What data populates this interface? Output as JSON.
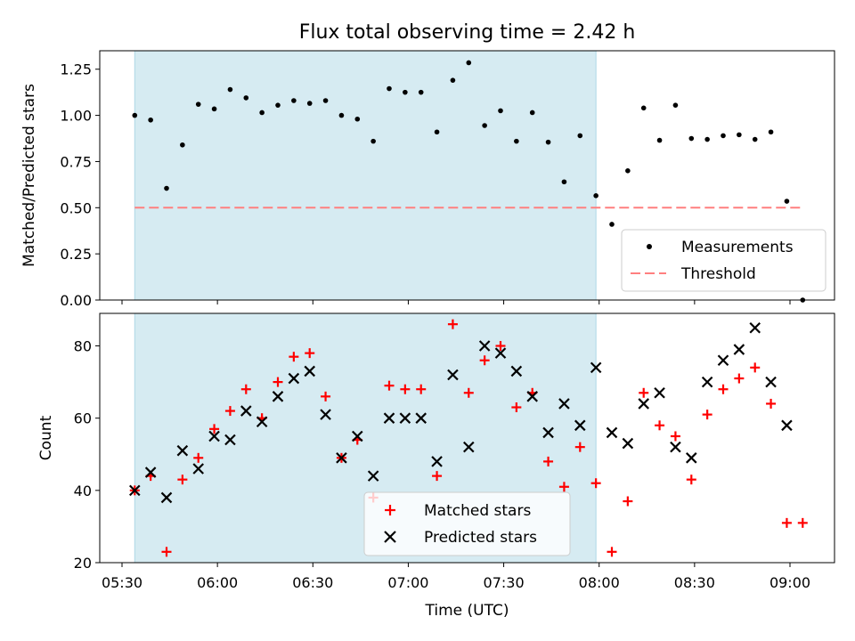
{
  "chart_data": [
    {
      "type": "scatter",
      "title": "Flux total observing time = 2.42 h",
      "xlabel": "",
      "ylabel": "Matched/Predicted stars",
      "ylim": [
        0,
        1.35
      ],
      "yticks": [
        0.0,
        0.25,
        0.5,
        0.75,
        1.0,
        1.25
      ],
      "ytick_labels": [
        "0.00",
        "0.25",
        "0.50",
        "0.75",
        "1.00",
        "1.25"
      ],
      "xlim": [
        "05:23",
        "09:14"
      ],
      "shaded_region": {
        "x": [
          "05:34",
          "07:59"
        ],
        "color": "#add8e6"
      },
      "legend": {
        "position": "lower right",
        "entries": [
          "Measurements",
          "Threshold"
        ]
      },
      "threshold": {
        "name": "Threshold",
        "y": 0.5,
        "x": [
          "05:34",
          "09:04"
        ],
        "color": "#ff7f7f",
        "style": "dashed"
      },
      "series": [
        {
          "name": "Measurements",
          "marker": "dot",
          "color": "#000000",
          "x": [
            "05:34",
            "05:39",
            "05:44",
            "05:49",
            "05:54",
            "05:59",
            "06:04",
            "06:09",
            "06:14",
            "06:19",
            "06:24",
            "06:29",
            "06:34",
            "06:39",
            "06:44",
            "06:49",
            "06:54",
            "06:59",
            "07:04",
            "07:09",
            "07:14",
            "07:19",
            "07:24",
            "07:29",
            "07:34",
            "07:39",
            "07:44",
            "07:49",
            "07:54",
            "07:59",
            "08:04",
            "08:09",
            "08:14",
            "08:19",
            "08:24",
            "08:29",
            "08:34",
            "08:39",
            "08:44",
            "08:49",
            "08:54",
            "08:59",
            "09:04"
          ],
          "y": [
            1.0,
            0.975,
            0.605,
            0.84,
            1.06,
            1.035,
            1.14,
            1.095,
            1.015,
            1.055,
            1.08,
            1.065,
            1.08,
            1.0,
            0.98,
            0.86,
            1.145,
            1.125,
            1.125,
            0.91,
            1.19,
            1.285,
            0.945,
            1.025,
            0.86,
            1.015,
            0.855,
            0.64,
            0.89,
            0.565,
            0.41,
            0.7,
            1.04,
            0.865,
            1.055,
            0.875,
            0.87,
            0.89,
            0.895,
            0.87,
            0.91,
            0.535,
            0.0
          ]
        }
      ]
    },
    {
      "type": "scatter",
      "title": "",
      "xlabel": "Time (UTC)",
      "ylabel": "Count",
      "ylim": [
        20,
        89
      ],
      "yticks": [
        20,
        40,
        60,
        80
      ],
      "ytick_labels": [
        "20",
        "40",
        "60",
        "80"
      ],
      "xlim": [
        "05:23",
        "09:14"
      ],
      "xticks": [
        "05:30",
        "06:00",
        "06:30",
        "07:00",
        "07:30",
        "08:00",
        "08:30",
        "09:00"
      ],
      "xtick_labels": [
        "05:30",
        "06:00",
        "06:30",
        "07:00",
        "07:30",
        "08:00",
        "08:30",
        "09:00"
      ],
      "shaded_region": {
        "x": [
          "05:34",
          "07:59"
        ],
        "color": "#add8e6"
      },
      "legend": {
        "position": "lower center",
        "entries": [
          "Matched stars",
          "Predicted stars"
        ]
      },
      "series": [
        {
          "name": "Matched stars",
          "marker": "plus",
          "color": "#ff0000",
          "x": [
            "05:34",
            "05:39",
            "05:44",
            "05:49",
            "05:54",
            "05:59",
            "06:04",
            "06:09",
            "06:14",
            "06:19",
            "06:24",
            "06:29",
            "06:34",
            "06:39",
            "06:44",
            "06:49",
            "06:54",
            "06:59",
            "07:04",
            "07:09",
            "07:14",
            "07:19",
            "07:24",
            "07:29",
            "07:34",
            "07:39",
            "07:44",
            "07:49",
            "07:54",
            "07:59",
            "08:04",
            "08:09",
            "08:14",
            "08:19",
            "08:24",
            "08:29",
            "08:34",
            "08:39",
            "08:44",
            "08:49",
            "08:54",
            "08:59",
            "09:04"
          ],
          "y": [
            40,
            44,
            23,
            43,
            49,
            57,
            62,
            68,
            60,
            70,
            77,
            78,
            66,
            49,
            54,
            38,
            69,
            68,
            68,
            44,
            86,
            67,
            76,
            80,
            63,
            67,
            48,
            41,
            52,
            42,
            23,
            37,
            67,
            58,
            55,
            43,
            61,
            68,
            71,
            74,
            64,
            31,
            31
          ]
        },
        {
          "name": "Predicted stars",
          "marker": "x",
          "color": "#000000",
          "x": [
            "05:34",
            "05:39",
            "05:44",
            "05:49",
            "05:54",
            "05:59",
            "06:04",
            "06:09",
            "06:14",
            "06:19",
            "06:24",
            "06:29",
            "06:34",
            "06:39",
            "06:44",
            "06:49",
            "06:54",
            "06:59",
            "07:04",
            "07:09",
            "07:14",
            "07:19",
            "07:24",
            "07:29",
            "07:34",
            "07:39",
            "07:44",
            "07:49",
            "07:54",
            "07:59",
            "08:04",
            "08:09",
            "08:14",
            "08:19",
            "08:24",
            "08:29",
            "08:34",
            "08:39",
            "08:44",
            "08:49",
            "08:54",
            "08:59"
          ],
          "y": [
            40,
            45,
            38,
            51,
            46,
            55,
            54,
            62,
            59,
            66,
            71,
            73,
            61,
            49,
            55,
            44,
            60,
            60,
            60,
            48,
            72,
            52,
            80,
            78,
            73,
            66,
            56,
            64,
            58,
            74,
            56,
            53,
            64,
            67,
            52,
            49,
            70,
            76,
            79,
            85,
            70,
            58
          ]
        }
      ]
    }
  ]
}
